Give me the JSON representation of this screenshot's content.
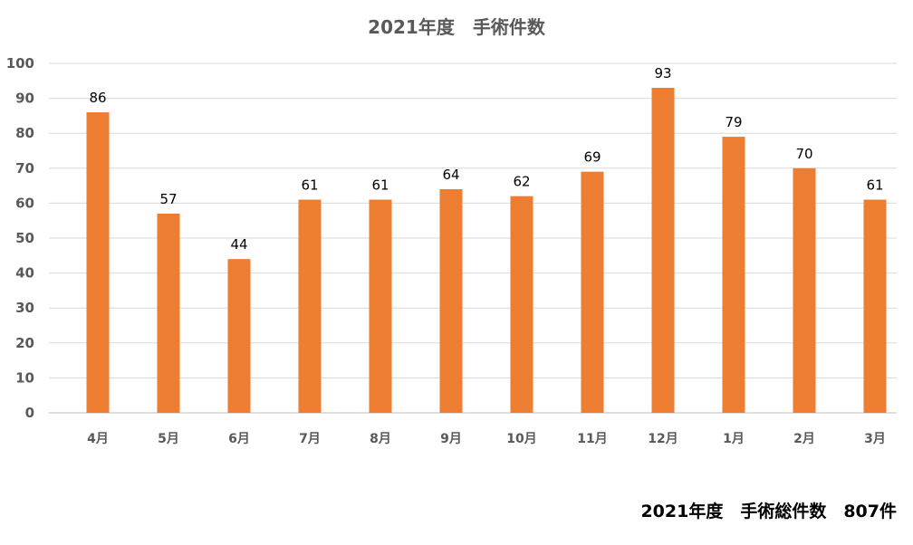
{
  "chart_data": {
    "type": "bar",
    "title": "2021年度　手術件数",
    "categories": [
      "4月",
      "5月",
      "6月",
      "7月",
      "8月",
      "9月",
      "10月",
      "11月",
      "12月",
      "1月",
      "2月",
      "3月"
    ],
    "values": [
      86,
      57,
      44,
      61,
      61,
      64,
      62,
      69,
      93,
      79,
      70,
      61
    ],
    "xlabel": "",
    "ylabel": "",
    "ylim": [
      0,
      100
    ],
    "yticks": [
      0,
      10,
      20,
      30,
      40,
      50,
      60,
      70,
      80,
      90,
      100
    ],
    "grid": true,
    "legend": "none",
    "bar_color": "#ED7D31",
    "data_labels": true
  },
  "footer": {
    "total_text": "2021年度　手術総件数　807件"
  }
}
